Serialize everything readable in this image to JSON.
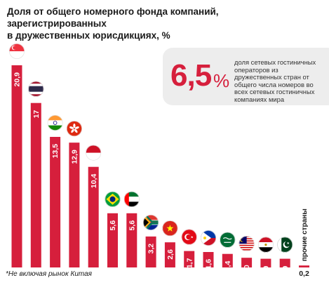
{
  "header": {
    "title_line1": "Доля от общего номерного фонда компаний, зарегистрированных",
    "title_line2": "в дружественных юрисдикциях, %"
  },
  "callout": {
    "value": "6,5",
    "unit": "%",
    "text": "доля сетевых гостиничных операторов из дружественных стран от общего числа номеров во всех сетевых гостиничных компаниях мира"
  },
  "footnote": "*Не включая рынок Китая",
  "colors": {
    "bar": "#d61f3c",
    "accent": "#d61f3c"
  },
  "chart_data": {
    "type": "bar",
    "categories": [
      "singapore-flag",
      "thailand-flag",
      "india-flag",
      "hong-kong-flag",
      "indonesia-flag",
      "brazil-flag",
      "uae-flag",
      "south-africa-flag",
      "vietnam-flag",
      "turkey-flag",
      "philippines-flag",
      "saudi-arabia-flag",
      "malaysia-flag",
      "egypt-flag",
      "pakistan-flag",
      "прочие страны"
    ],
    "values": [
      20.9,
      17,
      13.5,
      12.9,
      10.4,
      5.6,
      5.6,
      3.2,
      2.6,
      1.7,
      1.6,
      1.4,
      1.0,
      0.9,
      0.9,
      0.2
    ],
    "value_labels": [
      "20,9",
      "17",
      "13,5",
      "12,9",
      "10,4",
      "5,6",
      "5,6",
      "3,2",
      "2,6",
      "1,7",
      "1,6",
      "1,4",
      "1,0",
      "0,9",
      "0,9",
      "0,2"
    ],
    "other_label": "прочие страны",
    "title": "Доля от общего номерного фонда компаний, зарегистрированных в дружественных юрисдикциях, %",
    "xlabel": "",
    "ylabel": "",
    "ylim": [
      0,
      21
    ],
    "grid": false,
    "legend": "none"
  }
}
